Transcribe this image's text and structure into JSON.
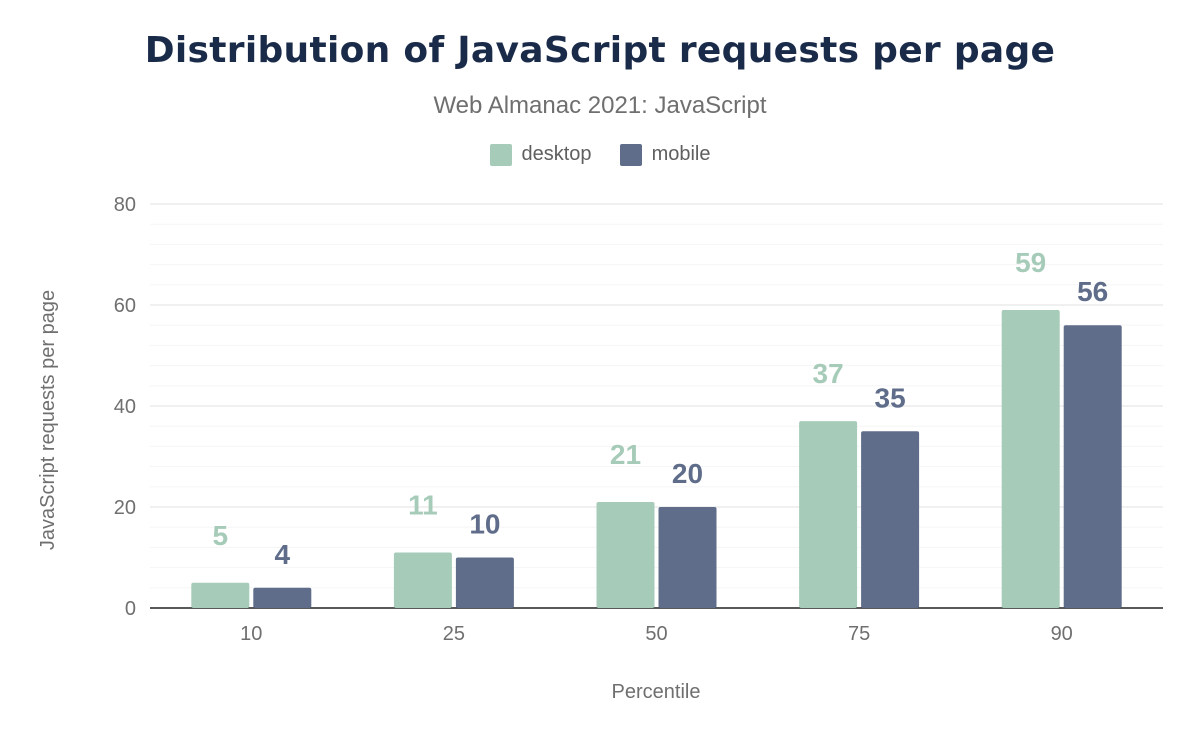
{
  "chart_data": {
    "type": "bar",
    "title": "Distribution of JavaScript requests per page",
    "subtitle": "Web Almanac 2021: JavaScript",
    "xlabel": "Percentile",
    "ylabel": "JavaScript requests per page",
    "categories": [
      "10",
      "25",
      "50",
      "75",
      "90"
    ],
    "series": [
      {
        "name": "desktop",
        "color": "#a7cbb9",
        "label_color": "#a7cbb9",
        "values": [
          5,
          11,
          21,
          37,
          59
        ]
      },
      {
        "name": "mobile",
        "color": "#5f6d8a",
        "label_color": "#5f6d8a",
        "values": [
          4,
          10,
          20,
          35,
          56
        ]
      }
    ],
    "ylim": [
      0,
      80
    ],
    "yticks": [
      "0",
      "20",
      "40",
      "60",
      "80"
    ],
    "grid": true,
    "legend": "top-center"
  }
}
